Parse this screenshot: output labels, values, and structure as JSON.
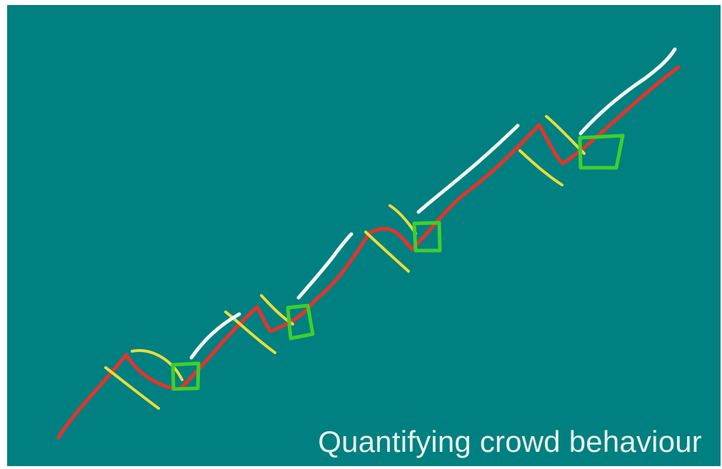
{
  "caption": "Quantifying crowd behaviour",
  "colors": {
    "background": "#008080",
    "price_line": "#e8322a",
    "reaction": "#e9dc3a",
    "trend": "#f4f7f5",
    "entry": "#3fcf2c",
    "caption": "#e7f1f0"
  }
}
